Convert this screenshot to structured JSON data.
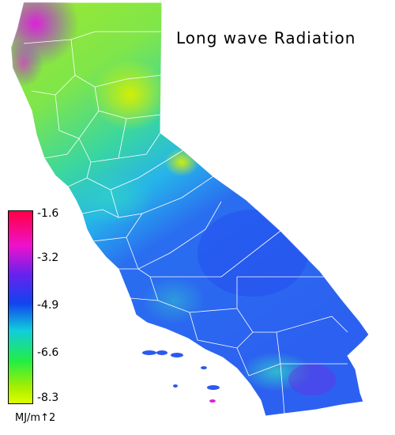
{
  "map": {
    "title": "Long wave Radiation",
    "region": "California",
    "colors": {
      "background": "#ffffff",
      "county_lines": "#ffffff",
      "north_high": "#b8f000",
      "north_mid": "#6ee836",
      "central": "#2ac8e0",
      "south": "#2266ee",
      "southern_coast": "#3a6cf0",
      "northwest_coast": "#dd22dd"
    }
  },
  "legend": {
    "ticks": [
      "-1.6",
      "-3.2",
      "-4.9",
      "-6.6",
      "-8.3"
    ],
    "units": "MJ/m↑2",
    "colorscale": [
      "#ff0044",
      "#ee11cc",
      "#6622ee",
      "#1144ee",
      "#11ccdd",
      "#22ee44",
      "#aaee00",
      "#ddff00"
    ]
  }
}
